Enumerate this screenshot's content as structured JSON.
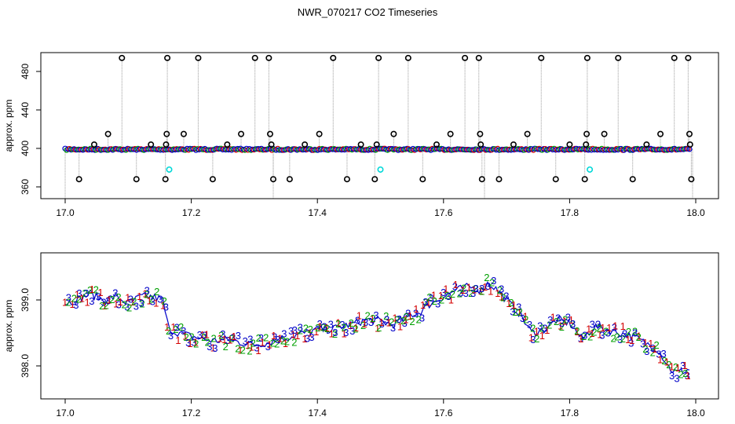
{
  "title": "NWR_070217  CO2 Timeseries",
  "colors": {
    "series1": "#d40000",
    "series2": "#00a000",
    "series3": "#0000c8",
    "outlier": "#000000",
    "flag": "#00d8d8",
    "drop": "#9a9a9a",
    "frame": "#000000"
  },
  "chart_data": [
    {
      "type": "scatter",
      "title": "",
      "xlabel": "",
      "ylabel": "approx. ppm",
      "xlim": [
        17.0,
        18.0
      ],
      "ylim": [
        352,
        496
      ],
      "x_ticks": [
        "17.0",
        "17.2",
        "17.4",
        "17.6",
        "17.8",
        "18.0"
      ],
      "y_ticks": [
        "360",
        "400",
        "440",
        "480"
      ],
      "grid": false,
      "baseline_ppm": 399,
      "outliers": [
        {
          "x": 17.022,
          "y": 368
        },
        {
          "x": 17.046,
          "y": 404
        },
        {
          "x": 17.068,
          "y": 415
        },
        {
          "x": 17.09,
          "y": 494
        },
        {
          "x": 17.113,
          "y": 368
        },
        {
          "x": 17.136,
          "y": 404
        },
        {
          "x": 17.159,
          "y": 368
        },
        {
          "x": 17.16,
          "y": 404
        },
        {
          "x": 17.161,
          "y": 415
        },
        {
          "x": 17.162,
          "y": 494
        },
        {
          "x": 17.188,
          "y": 415
        },
        {
          "x": 17.211,
          "y": 494
        },
        {
          "x": 17.234,
          "y": 368
        },
        {
          "x": 17.257,
          "y": 404
        },
        {
          "x": 17.279,
          "y": 415
        },
        {
          "x": 17.301,
          "y": 494
        },
        {
          "x": 17.323,
          "y": 494
        },
        {
          "x": 17.325,
          "y": 415
        },
        {
          "x": 17.327,
          "y": 404
        },
        {
          "x": 17.33,
          "y": 368
        },
        {
          "x": 17.356,
          "y": 368
        },
        {
          "x": 17.38,
          "y": 404
        },
        {
          "x": 17.403,
          "y": 415
        },
        {
          "x": 17.425,
          "y": 494
        },
        {
          "x": 17.447,
          "y": 368
        },
        {
          "x": 17.469,
          "y": 404
        },
        {
          "x": 17.491,
          "y": 368
        },
        {
          "x": 17.494,
          "y": 404
        },
        {
          "x": 17.497,
          "y": 494
        },
        {
          "x": 17.521,
          "y": 415
        },
        {
          "x": 17.544,
          "y": 494
        },
        {
          "x": 17.567,
          "y": 368
        },
        {
          "x": 17.589,
          "y": 404
        },
        {
          "x": 17.611,
          "y": 415
        },
        {
          "x": 17.634,
          "y": 494
        },
        {
          "x": 17.656,
          "y": 494
        },
        {
          "x": 17.658,
          "y": 415
        },
        {
          "x": 17.659,
          "y": 404
        },
        {
          "x": 17.661,
          "y": 368
        },
        {
          "x": 17.688,
          "y": 368
        },
        {
          "x": 17.711,
          "y": 404
        },
        {
          "x": 17.733,
          "y": 415
        },
        {
          "x": 17.755,
          "y": 494
        },
        {
          "x": 17.778,
          "y": 368
        },
        {
          "x": 17.8,
          "y": 404
        },
        {
          "x": 17.824,
          "y": 368
        },
        {
          "x": 17.826,
          "y": 404
        },
        {
          "x": 17.827,
          "y": 415
        },
        {
          "x": 17.828,
          "y": 494
        },
        {
          "x": 17.855,
          "y": 415
        },
        {
          "x": 17.877,
          "y": 494
        },
        {
          "x": 17.9,
          "y": 368
        },
        {
          "x": 17.922,
          "y": 404
        },
        {
          "x": 17.944,
          "y": 415
        },
        {
          "x": 17.966,
          "y": 494
        },
        {
          "x": 17.988,
          "y": 494
        },
        {
          "x": 17.99,
          "y": 415
        },
        {
          "x": 17.991,
          "y": 404
        },
        {
          "x": 17.993,
          "y": 368
        }
      ],
      "flagged": [
        {
          "x": 17.165,
          "y": 378
        },
        {
          "x": 17.5,
          "y": 378
        },
        {
          "x": 17.832,
          "y": 378
        }
      ]
    },
    {
      "type": "line",
      "title": "",
      "xlabel": "",
      "ylabel": "approx. ppm",
      "xlim": [
        17.0,
        18.0
      ],
      "ylim": [
        397.6,
        399.6
      ],
      "x_ticks": [
        "17.0",
        "17.2",
        "17.4",
        "17.6",
        "17.8",
        "18.0"
      ],
      "y_ticks": [
        "398.0",
        "399.0"
      ],
      "grid": false,
      "series_labels": [
        "1",
        "2",
        "3"
      ],
      "series": [
        {
          "name": "",
          "x": [
            17.0,
            17.02,
            17.04,
            17.06,
            17.08,
            17.1,
            17.12,
            17.14,
            17.155,
            17.16,
            17.165,
            17.18,
            17.2,
            17.22,
            17.24,
            17.26,
            17.28,
            17.3,
            17.32,
            17.34,
            17.36,
            17.38,
            17.4,
            17.42,
            17.44,
            17.46,
            17.48,
            17.5,
            17.52,
            17.54,
            17.56,
            17.58,
            17.6,
            17.62,
            17.64,
            17.66,
            17.67,
            17.68,
            17.7,
            17.72,
            17.74,
            17.76,
            17.78,
            17.8,
            17.82,
            17.84,
            17.86,
            17.88,
            17.9,
            17.92,
            17.94,
            17.95,
            17.96,
            17.97,
            17.98,
            17.99
          ],
          "y": [
            398.95,
            399.0,
            399.1,
            399.0,
            399.05,
            398.95,
            399.05,
            399.05,
            399.0,
            398.75,
            398.55,
            398.5,
            398.45,
            398.4,
            398.38,
            398.4,
            398.35,
            398.32,
            398.35,
            398.4,
            398.45,
            398.5,
            398.55,
            398.55,
            398.6,
            398.65,
            398.7,
            398.68,
            398.62,
            398.75,
            398.8,
            398.95,
            399.05,
            399.15,
            399.2,
            399.15,
            399.25,
            399.2,
            399.0,
            398.8,
            398.5,
            398.55,
            398.7,
            398.65,
            398.4,
            398.6,
            398.55,
            398.5,
            398.45,
            398.35,
            398.25,
            398.1,
            397.95,
            397.9,
            397.92,
            397.95
          ]
        }
      ]
    }
  ]
}
